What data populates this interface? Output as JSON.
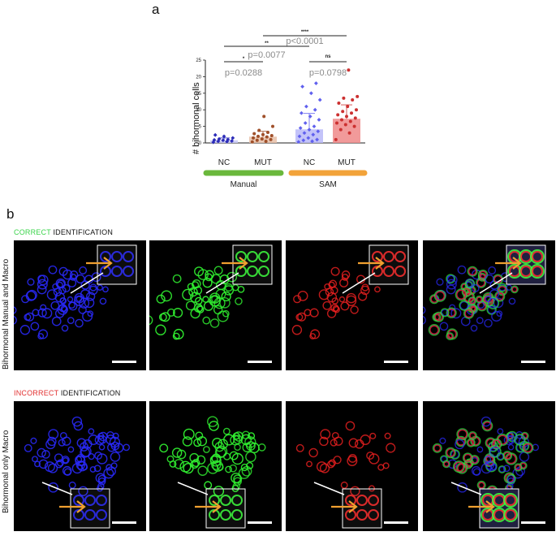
{
  "panel_a": {
    "letter": "a",
    "chart_data": {
      "type": "bar",
      "ylabel": "# bihormonal cells",
      "ylim": [
        0,
        25
      ],
      "yticks": [
        "0",
        "5",
        "10",
        "15",
        "20",
        "25"
      ],
      "categories": [
        "NC",
        "MUT",
        "NC",
        "MUT"
      ],
      "groups": [
        {
          "label": "Manual",
          "color": "#6ab83c",
          "members": [
            0,
            1
          ]
        },
        {
          "label": "SAM",
          "color": "#f2a33a",
          "members": [
            2,
            3
          ]
        }
      ],
      "values": [
        0.8,
        1.9,
        4.1,
        7.3
      ],
      "errors": [
        0.7,
        1.6,
        4.8,
        4.2
      ],
      "bar_colors": [
        "#c9c9f5",
        "#e8c0a8",
        "#b8b8f8",
        "#ee8888"
      ],
      "point_colors": [
        "#2b2bb8",
        "#a0502a",
        "#6060ee",
        "#cc3030"
      ],
      "points": [
        [
          0.2,
          0.4,
          0.5,
          0.6,
          0.8,
          0.9,
          1.0,
          1.2,
          1.5,
          2.0,
          2.4
        ],
        [
          0.3,
          0.5,
          0.8,
          1.0,
          1.2,
          1.5,
          1.8,
          2.0,
          2.2,
          2.5,
          2.8,
          3.2,
          3.8,
          5.0,
          8.0
        ],
        [
          0.3,
          0.5,
          0.8,
          1.0,
          1.5,
          2.0,
          2.5,
          3.0,
          3.5,
          4.0,
          4.5,
          5.0,
          6.0,
          7.0,
          8.0,
          9.0,
          10.0,
          11.0,
          13.0,
          15.0,
          17.0,
          18.0
        ],
        [
          1.0,
          3.0,
          4.0,
          5.0,
          5.5,
          6.0,
          6.5,
          7.0,
          7.5,
          8.0,
          8.5,
          9.0,
          9.5,
          10.0,
          11.0,
          12.0,
          13.0,
          13.5,
          14.0,
          22.0
        ]
      ],
      "comparisons": [
        {
          "from": 0,
          "to": 1,
          "stars": "*",
          "p": "p=0.0288"
        },
        {
          "from": 0,
          "to": 2,
          "stars": "**",
          "p": "p=0.0077"
        },
        {
          "from": 2,
          "to": 3,
          "stars": "ns",
          "p": "p=0.0798"
        },
        {
          "from": 1,
          "to": 3,
          "stars": "****",
          "p": "p<0.0001"
        }
      ]
    }
  },
  "panel_b": {
    "letter": "b",
    "row1": {
      "title_colored": "CORRECT",
      "title_rest": " IDENTIFICATION",
      "title_color": "#3ad44a",
      "side_label": "Bihormonal Manual and Macro"
    },
    "row2": {
      "title_colored": "INCORRECT",
      "title_rest": " IDENTIFICATION",
      "title_color": "#e23030",
      "side_label": "Bihormonal only Macro"
    },
    "channels": [
      "blue-channel",
      "green-channel",
      "red-channel",
      "merge-channel"
    ],
    "arrow_color": "#f0a030"
  }
}
